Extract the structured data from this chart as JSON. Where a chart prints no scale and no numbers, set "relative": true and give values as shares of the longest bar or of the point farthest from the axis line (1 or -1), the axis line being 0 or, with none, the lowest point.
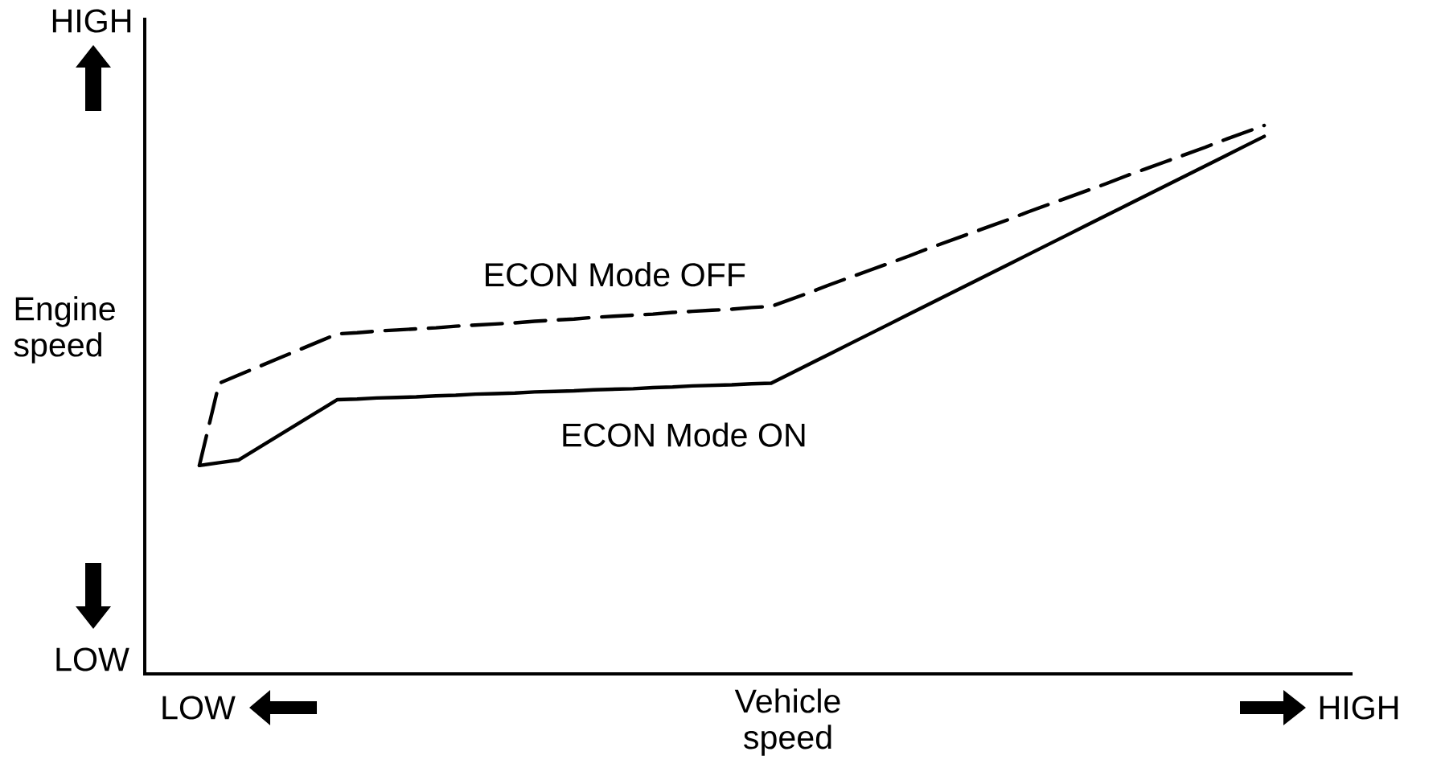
{
  "chart_data": {
    "type": "line",
    "relative": true,
    "ylabel": "Engine speed",
    "xlabel": "Vehicle speed",
    "annotations": [
      "HIGH",
      "LOW",
      "LOW",
      "HIGH"
    ],
    "categories": [
      null,
      null,
      null,
      null,
      null,
      null,
      null,
      null,
      null,
      null,
      null,
      null,
      null,
      null,
      null,
      null,
      null,
      null,
      null,
      null,
      null,
      null,
      null,
      null,
      null,
      null,
      null,
      null,
      null,
      null,
      null,
      null,
      null,
      null,
      null,
      null,
      null,
      null,
      null,
      null,
      null,
      null,
      null,
      null,
      null,
      null,
      null,
      null,
      null,
      null,
      null,
      null,
      null,
      null,
      null
    ],
    "series": [
      {
        "name": "ECON Mode OFF",
        "color": "#000000",
        "line_style": "dashed",
        "values": [
          0.38,
          0.53,
          0.545,
          0.56,
          0.575,
          0.59,
          0.605,
          0.62,
          0.622,
          0.625,
          0.627,
          0.629,
          0.631,
          0.634,
          0.636,
          0.638,
          0.64,
          0.643,
          0.645,
          0.647,
          0.65,
          0.652,
          0.654,
          0.656,
          0.659,
          0.661,
          0.663,
          0.665,
          0.668,
          0.67,
          0.683,
          0.696,
          0.71,
          0.723,
          0.736,
          0.749,
          0.762,
          0.776,
          0.789,
          0.802,
          0.815,
          0.828,
          0.842,
          0.855,
          0.868,
          0.881,
          0.894,
          0.908,
          0.921,
          0.934,
          0.947,
          0.96,
          0.974,
          0.987,
          1
        ]
      },
      {
        "name": "ECON Mode ON",
        "color": "#000000",
        "line_style": "solid",
        "values": [
          0.38,
          0.385,
          0.39,
          0.412,
          0.434,
          0.456,
          0.478,
          0.5,
          0.501,
          0.503,
          0.504,
          0.505,
          0.507,
          0.508,
          0.51,
          0.511,
          0.512,
          0.514,
          0.515,
          0.516,
          0.518,
          0.519,
          0.52,
          0.522,
          0.523,
          0.525,
          0.526,
          0.527,
          0.529,
          0.53,
          0.548,
          0.566,
          0.584,
          0.602,
          0.62,
          0.638,
          0.656,
          0.674,
          0.692,
          0.71,
          0.728,
          0.746,
          0.764,
          0.782,
          0.8,
          0.818,
          0.836,
          0.854,
          0.872,
          0.89,
          0.908,
          0.926,
          0.944,
          0.962,
          0.98
        ]
      }
    ]
  }
}
